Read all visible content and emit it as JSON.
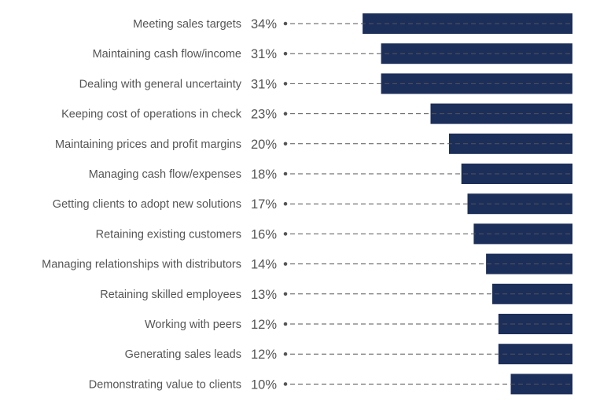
{
  "chart_data": {
    "type": "bar",
    "orientation": "horizontal",
    "categories": [
      "Meeting sales targets",
      "Maintaining cash flow/income",
      "Dealing with general uncertainty",
      "Keeping cost of operations in check",
      "Maintaining prices and profit margins",
      "Managing cash flow/expenses",
      "Getting clients to adopt new solutions",
      "Retaining existing customers",
      "Managing relationships with distributors",
      "Retaining skilled employees",
      "Working with peers",
      "Generating sales leads",
      "Demonstrating value to clients"
    ],
    "values": [
      34,
      31,
      31,
      23,
      20,
      18,
      17,
      16,
      14,
      13,
      12,
      12,
      10
    ],
    "value_labels": [
      "34%",
      "31%",
      "31%",
      "23%",
      "20%",
      "18%",
      "17%",
      "16%",
      "14%",
      "13%",
      "12%",
      "12%",
      "10%"
    ],
    "unit": "%",
    "bars_aligned": "right",
    "grid": false,
    "legend": "none",
    "bar_color": "#1c2e5a",
    "dash_color": "#555555",
    "label_color": "#555555"
  }
}
